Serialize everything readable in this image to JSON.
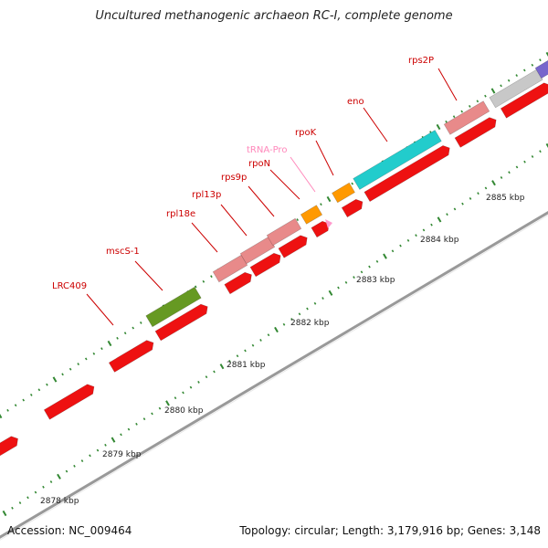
{
  "header": {
    "title": "Uncultured methanogenic archaeon RC-I, complete genome"
  },
  "footer": {
    "accession": "Accession: NC_009464",
    "topology": "Topology: circular; Length: 3,179,916 bp; Genes: 3,148"
  },
  "scale": {
    "unit": "kbp",
    "labels": [
      "2878 kbp",
      "2879 kbp",
      "2880 kbp",
      "2881 kbp",
      "2882 kbp",
      "2883 kbp",
      "2884 kbp",
      "2885 kbp"
    ]
  },
  "colors": {
    "cds": "#ee1111",
    "rrna_like": "#e88a8a",
    "trna": "#ff99cc",
    "orange": "#ff9900",
    "cyan": "#22cccc",
    "olive": "#669922",
    "gray": "#c8c8c8",
    "purple": "#7766cc",
    "backbone": "#888888",
    "ticks": "#338833",
    "label_red": "#cc0000",
    "label_pink": "#ff88bb"
  },
  "gene_labels": [
    {
      "name": "LRC409",
      "color_key": "label_red"
    },
    {
      "name": "mscS-1",
      "color_key": "label_red"
    },
    {
      "name": "rpl18e",
      "color_key": "label_red"
    },
    {
      "name": "rpl13p",
      "color_key": "label_red"
    },
    {
      "name": "rps9p",
      "color_key": "label_red"
    },
    {
      "name": "rpoN",
      "color_key": "label_red"
    },
    {
      "name": "tRNA-Pro",
      "color_key": "label_pink"
    },
    {
      "name": "rpoK",
      "color_key": "label_red"
    },
    {
      "name": "eno",
      "color_key": "label_red"
    },
    {
      "name": "rps2P",
      "color_key": "label_red"
    }
  ]
}
